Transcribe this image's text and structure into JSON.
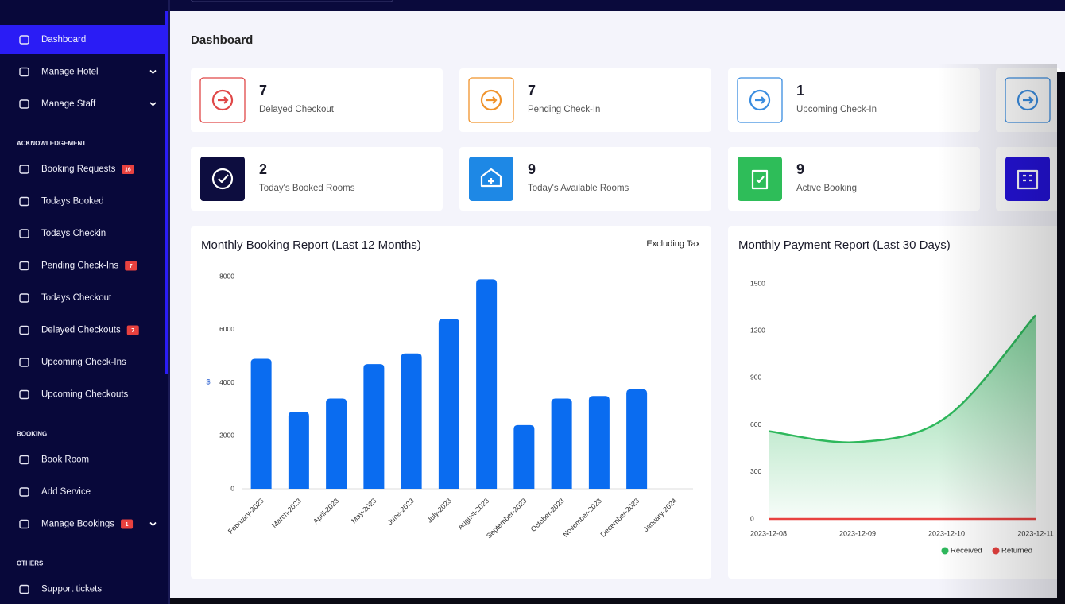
{
  "sidebar": {
    "groups": [
      {
        "items": [
          {
            "label": "Dashboard",
            "active": true
          },
          {
            "label": "Manage Hotel",
            "submenu": true
          },
          {
            "label": "Manage Staff",
            "submenu": true
          }
        ]
      },
      {
        "heading": "ACKNOWLEDGEMENT",
        "items": [
          {
            "label": "Booking Requests",
            "badge": "16"
          },
          {
            "label": "Todays Booked"
          },
          {
            "label": "Todays Checkin"
          },
          {
            "label": "Pending Check-Ins",
            "badge": "7"
          },
          {
            "label": "Todays Checkout"
          },
          {
            "label": "Delayed Checkouts",
            "badge": "7"
          },
          {
            "label": "Upcoming Check-Ins"
          },
          {
            "label": "Upcoming Checkouts"
          }
        ]
      },
      {
        "heading": "BOOKING",
        "items": [
          {
            "label": "Book Room"
          },
          {
            "label": "Add Service"
          },
          {
            "label": "Manage Bookings",
            "badge": "1",
            "submenu": true
          }
        ]
      },
      {
        "heading": "OTHERS",
        "items": [
          {
            "label": "Support tickets"
          }
        ]
      }
    ]
  },
  "page_title": "Dashboard",
  "cards": [
    [
      {
        "value": 7,
        "label": "Delayed Checkout",
        "color": "#e04848"
      },
      {
        "value": 7,
        "label": "Pending Check-In",
        "color": "#f0932b"
      },
      {
        "value": 1,
        "label": "Upcoming Check-In",
        "color": "#3a8de0"
      },
      {
        "color": "#3a8de0"
      }
    ],
    [
      {
        "value": 2,
        "label": "Today's Booked Rooms",
        "color": "#0d0d3f"
      },
      {
        "value": 9,
        "label": "Today's Available Rooms",
        "color": "#1e88e5"
      },
      {
        "value": 9,
        "label": "Active Booking",
        "color": "#2ebd59"
      },
      {
        "color": "#2412d8"
      }
    ]
  ],
  "chart_data": [
    {
      "type": "bar",
      "title": "Monthly Booking Report (Last 12 Months)",
      "subtitle": "Excluding Tax",
      "y_label": "$",
      "categories": [
        "February-2023",
        "March-2023",
        "April-2023",
        "May-2023",
        "June-2023",
        "July-2023",
        "August-2023",
        "September-2023",
        "October-2023",
        "November-2023",
        "December-2023",
        "January-2024"
      ],
      "values": [
        4900,
        2900,
        3400,
        4700,
        5100,
        6400,
        7900,
        2400,
        3400,
        3500,
        3750,
        null
      ],
      "color": "#0a6cf0",
      "ylim": [
        0,
        8000
      ],
      "yticks": [
        0,
        2000,
        4000,
        6000,
        8000
      ],
      "grid": false
    },
    {
      "type": "area",
      "title": "Monthly Payment Report (Last 30 Days)",
      "x": [
        "2023-12-08",
        "2023-12-09",
        "2023-12-10",
        "2023-12-11"
      ],
      "series": [
        {
          "name": "Received",
          "color": "#2eb85c",
          "values": [
            560,
            490,
            650,
            1300
          ]
        },
        {
          "name": "Returned",
          "color": "#e8413f",
          "values": [
            0,
            0,
            0,
            0
          ]
        }
      ],
      "ylim": [
        0,
        1500
      ],
      "yticks": [
        0,
        300,
        600,
        900,
        1200,
        1500
      ],
      "grid": false,
      "legend": "bottom"
    }
  ]
}
